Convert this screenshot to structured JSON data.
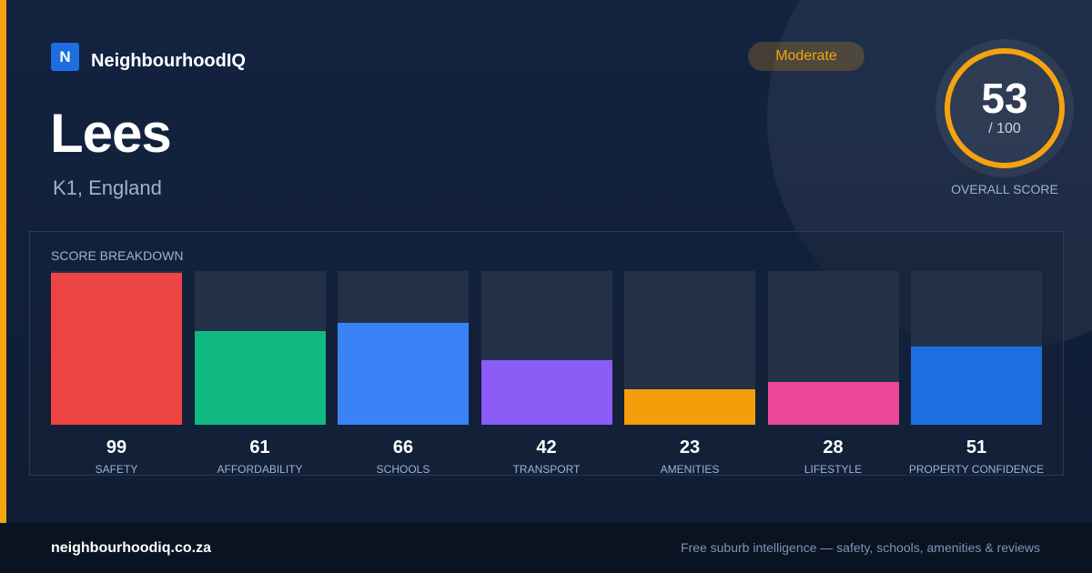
{
  "brand": {
    "logo_letter": "N",
    "name": "NeighbourhoodIQ"
  },
  "location": {
    "name": "Lees",
    "subtitle": "K1, England"
  },
  "rating": {
    "label": "Moderate",
    "color": "#f5a30f"
  },
  "overall": {
    "score": "53",
    "max_text": "/ 100",
    "fraction": 0.53,
    "label": "OVERALL SCORE",
    "ring_color": "#f5a30f"
  },
  "breakdown": {
    "title": "SCORE BREAKDOWN",
    "items": [
      {
        "label": "SAFETY",
        "value": "99",
        "score": 99,
        "color": "#ef4444"
      },
      {
        "label": "AFFORDABILITY",
        "value": "61",
        "score": 61,
        "color": "#10b981"
      },
      {
        "label": "SCHOOLS",
        "value": "66",
        "score": 66,
        "color": "#3b82f6"
      },
      {
        "label": "TRANSPORT",
        "value": "42",
        "score": 42,
        "color": "#8b5cf6"
      },
      {
        "label": "AMENITIES",
        "value": "23",
        "score": 23,
        "color": "#f59e0b"
      },
      {
        "label": "LIFESTYLE",
        "value": "28",
        "score": 28,
        "color": "#ec4899"
      },
      {
        "label": "PROPERTY CONFIDENCE",
        "value": "51",
        "score": 51,
        "color": "#1d6fe0"
      }
    ]
  },
  "footer": {
    "url": "neighbourhoodiq.co.za",
    "tagline": "Free suburb intelligence — safety, schools, amenities & reviews"
  }
}
